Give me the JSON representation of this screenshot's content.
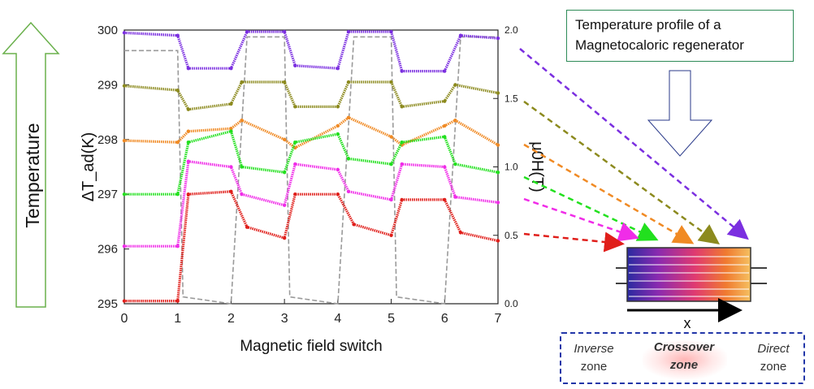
{
  "side_label": "Temperature",
  "title_box": {
    "line1": "Temperature profile of a",
    "line2": "Magnetocaloric regenerator"
  },
  "zones": {
    "inverse": {
      "line1": "Inverse",
      "line2": "zone"
    },
    "crossover": {
      "line1": "Crossover",
      "line2": "zone"
    },
    "direct": {
      "line1": "Direct",
      "line2": "zone"
    }
  },
  "regenerator": {
    "axis_label": "x"
  },
  "colors": {
    "violet": "#7b2fe0",
    "olive": "#8c8a1e",
    "orange": "#f08a24",
    "green": "#22e01e",
    "magenta": "#f02ce8",
    "red": "#e01e1a",
    "field": "#9a9a9a",
    "arrow_green": "#6ab04c"
  },
  "chart_data": {
    "type": "line",
    "xlabel": "Magnetic field switch",
    "ylabel_left": "ΔT_ad(K)",
    "ylabel_right": "μ0H(T)",
    "xlim": [
      0,
      7
    ],
    "ylim_left": [
      295,
      300
    ],
    "ylim_right": [
      0.0,
      2.0
    ],
    "x_ticks": [
      "0",
      "1",
      "2",
      "3",
      "4",
      "5",
      "6",
      "7"
    ],
    "y_ticks_left": [
      "295",
      "296",
      "297",
      "298",
      "299",
      "300"
    ],
    "y_ticks_right": [
      "0.0",
      "0.5",
      "1.0",
      "1.5",
      "2.0"
    ],
    "series": [
      {
        "color": "violet",
        "x": [
          0,
          1,
          1.2,
          2,
          2.3,
          3,
          3.2,
          4,
          4.2,
          5,
          5.2,
          6,
          6.3,
          7
        ],
        "y": [
          299.95,
          299.9,
          299.3,
          299.3,
          299.97,
          299.97,
          299.35,
          299.3,
          299.97,
          299.97,
          299.25,
          299.25,
          299.9,
          299.85
        ]
      },
      {
        "color": "olive",
        "x": [
          0,
          1,
          1.2,
          2,
          2.2,
          3,
          3.2,
          4,
          4.2,
          5,
          5.2,
          6,
          6.2,
          7
        ],
        "y": [
          298.98,
          298.9,
          298.55,
          298.65,
          299.05,
          299.05,
          298.6,
          298.6,
          299.05,
          299.05,
          298.6,
          298.7,
          299.0,
          298.85
        ]
      },
      {
        "color": "orange",
        "x": [
          0,
          1,
          1.2,
          2,
          2.2,
          3,
          3.2,
          4,
          4.2,
          5,
          5.2,
          6,
          6.2,
          7
        ],
        "y": [
          297.98,
          297.95,
          298.15,
          298.2,
          298.35,
          298.0,
          297.85,
          298.25,
          298.4,
          298.05,
          297.9,
          298.25,
          298.35,
          297.9
        ]
      },
      {
        "color": "green",
        "x": [
          0,
          1,
          1.2,
          2,
          2.2,
          3,
          3.2,
          4,
          4.2,
          5,
          5.2,
          6,
          6.2,
          7
        ],
        "y": [
          297.0,
          297.0,
          297.95,
          298.15,
          297.5,
          297.4,
          297.95,
          298.1,
          297.65,
          297.55,
          297.95,
          298.05,
          297.55,
          297.4
        ]
      },
      {
        "color": "magenta",
        "x": [
          0,
          1,
          1.2,
          2,
          2.2,
          3,
          3.2,
          4,
          4.2,
          5,
          5.2,
          6,
          6.2,
          7
        ],
        "y": [
          296.05,
          296.05,
          297.6,
          297.5,
          297.0,
          296.8,
          297.55,
          297.45,
          297.05,
          296.9,
          297.55,
          297.5,
          296.95,
          296.85
        ]
      },
      {
        "color": "red",
        "x": [
          0,
          1,
          1.2,
          2,
          2.3,
          3,
          3.2,
          4,
          4.3,
          5,
          5.2,
          6,
          6.3,
          7
        ],
        "y": [
          295.05,
          295.05,
          297.0,
          297.05,
          296.4,
          296.2,
          297.0,
          297.0,
          296.45,
          296.25,
          296.9,
          296.9,
          296.3,
          296.15
        ]
      }
    ],
    "field_series": {
      "name": "μ0H(T)",
      "x": [
        0,
        1,
        1.1,
        2,
        2.3,
        3,
        3.1,
        4,
        4.3,
        5,
        5.1,
        6,
        6.3,
        7
      ],
      "y": [
        1.85,
        1.85,
        0.05,
        0.0,
        1.95,
        1.95,
        0.05,
        0.0,
        1.95,
        1.95,
        0.05,
        0.0,
        1.95,
        1.95
      ]
    },
    "grid": false,
    "legend": "none"
  }
}
